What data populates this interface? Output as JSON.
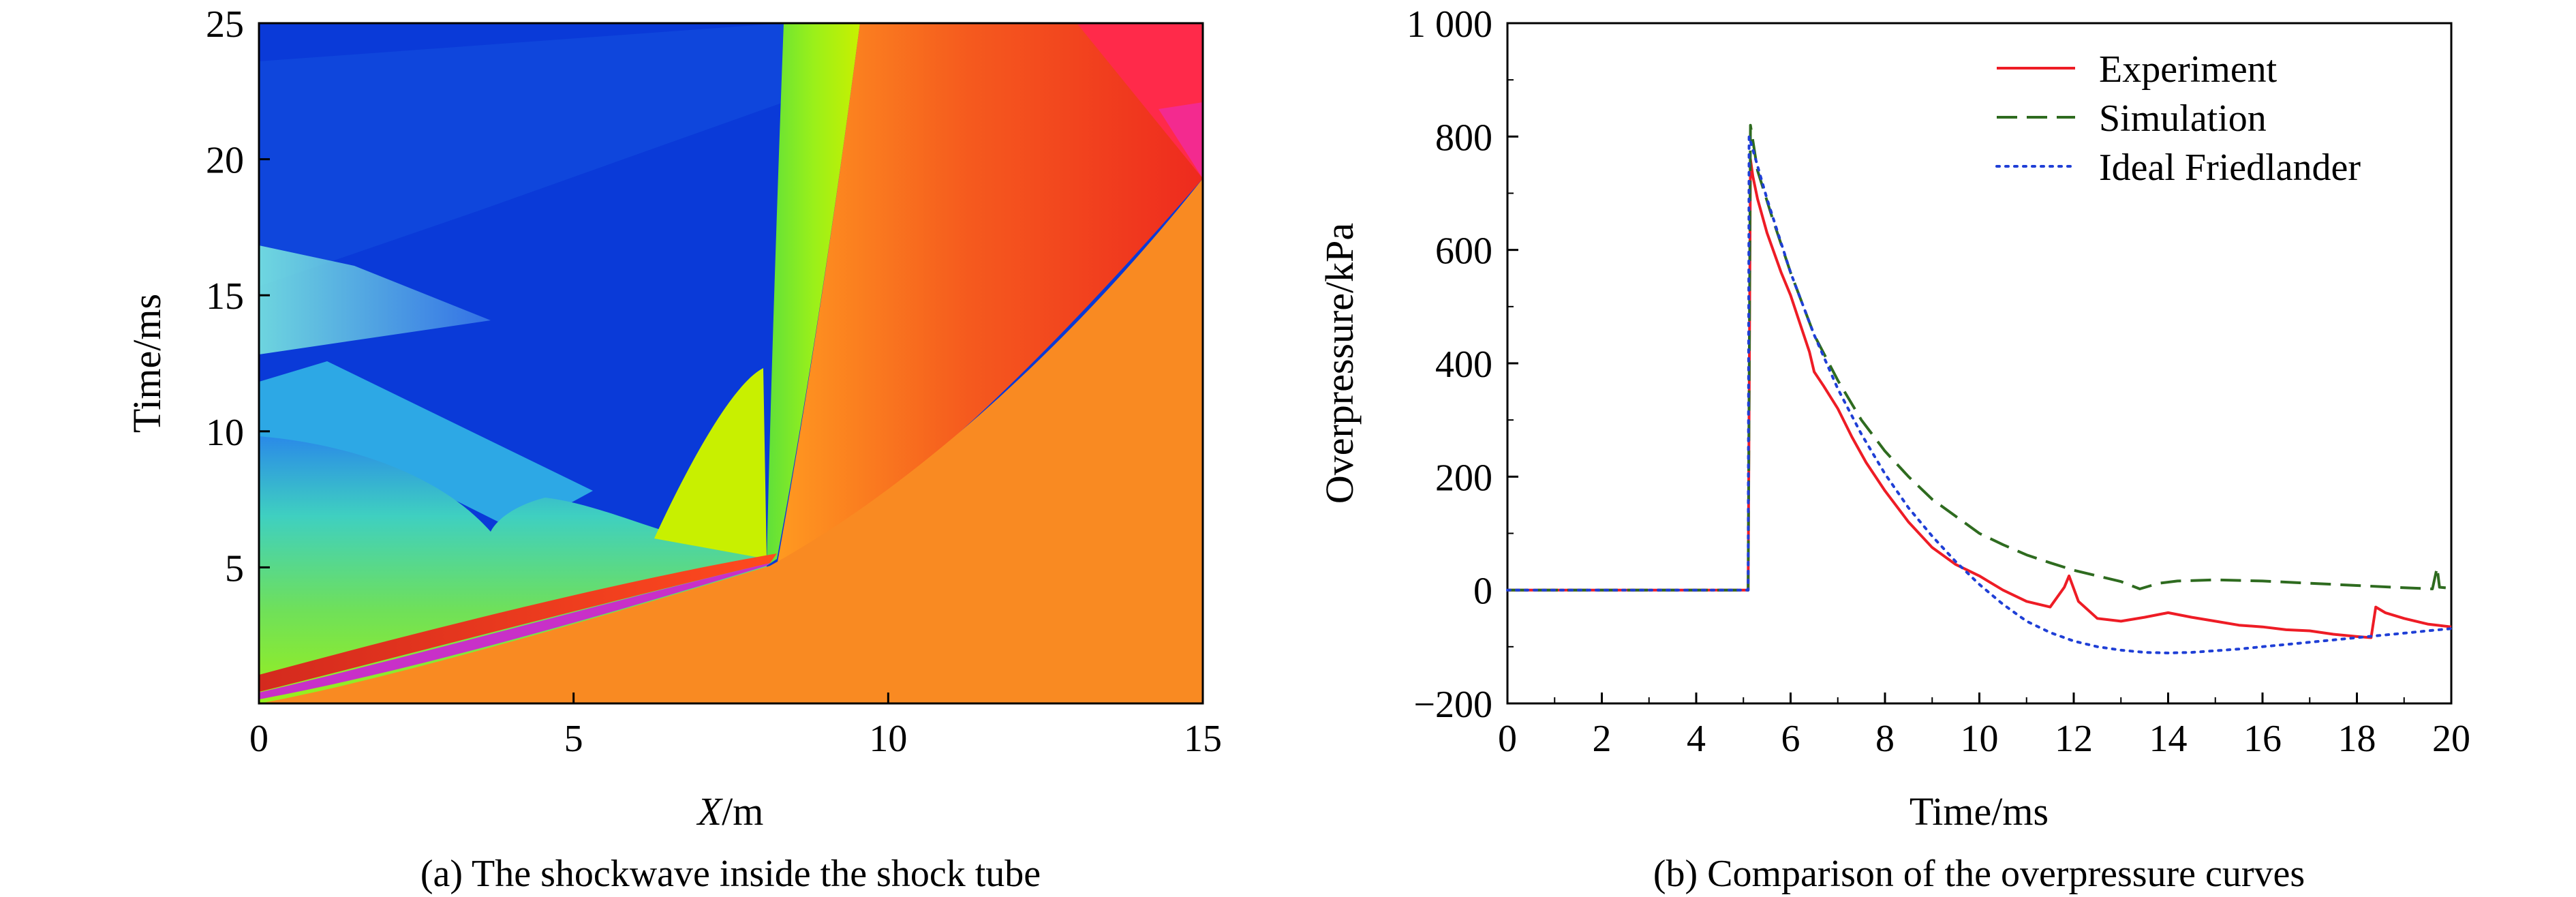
{
  "panel_a": {
    "caption": "(a) The shockwave inside the shock tube",
    "xlabel_italic": "X",
    "xlabel_unit": "/m"
  },
  "panel_b": {
    "caption": "(b) Comparison of the overpressure curves"
  },
  "colors": {
    "experiment": "#ee1c25",
    "simulation": "#2e6b1f",
    "friedlander": "#1f3fd6",
    "contour_low": "#0a3ad8",
    "contour_mid": "#7ee81a",
    "contour_high": "#ee2b1f",
    "contour_ambient": "#f98a22",
    "contour_peak": "#c830c8"
  },
  "chart_data": [
    {
      "type": "heatmap",
      "xlabel": "X/m",
      "ylabel": "Time/ms",
      "xlim": [
        0,
        15
      ],
      "ylim": [
        0,
        25
      ],
      "xticks": [
        0,
        5,
        10,
        15
      ],
      "yticks": [
        5,
        10,
        15,
        20,
        25
      ],
      "color_scale": "pressure (blue = low, green = medium, red/magenta = high, orange = ambient)",
      "features": {
        "incident_shock_front": [
          [
            0,
            0
          ],
          [
            2,
            1.3
          ],
          [
            4,
            2.8
          ],
          [
            6,
            4.2
          ],
          [
            8,
            5.4
          ],
          [
            10,
            7.2
          ],
          [
            12,
            10.2
          ],
          [
            15,
            19.3
          ]
        ],
        "contact_surface": [
          [
            8.1,
            5.8
          ],
          [
            8.2,
            12
          ],
          [
            8.25,
            20
          ],
          [
            8.3,
            25
          ]
        ],
        "rarefaction_fan_head": [
          [
            9.6,
            25
          ],
          [
            12.8,
            25
          ],
          [
            15,
            19.5
          ]
        ]
      }
    },
    {
      "type": "line",
      "xlabel": "Time/ms",
      "ylabel": "Overpressure/kPa",
      "xlim": [
        0,
        20
      ],
      "ylim": [
        -200,
        1000
      ],
      "xticks": [
        0,
        2,
        4,
        6,
        8,
        10,
        12,
        14,
        16,
        18,
        20
      ],
      "yticks": [
        -200,
        0,
        200,
        400,
        600,
        800,
        1000
      ],
      "ytick_labels": [
        "−200",
        "0",
        "200",
        "400",
        "600",
        "800",
        "1 000"
      ],
      "legend_position": "top-right",
      "series": [
        {
          "name": "Experiment",
          "style": "solid",
          "x": [
            0,
            5.1,
            5.15,
            5.2,
            5.3,
            5.5,
            5.8,
            6.0,
            6.2,
            6.4,
            6.5,
            6.7,
            7.0,
            7.3,
            7.6,
            8.0,
            8.5,
            9.0,
            9.5,
            10.0,
            10.5,
            11.0,
            11.5,
            11.8,
            11.9,
            12.1,
            12.5,
            13.0,
            13.5,
            14.0,
            14.5,
            15.0,
            15.5,
            16.0,
            16.5,
            17.0,
            17.5,
            18.0,
            18.3,
            18.4,
            18.6,
            19.0,
            19.5,
            20.0
          ],
          "y": [
            0,
            0,
            760,
            730,
            690,
            630,
            560,
            520,
            470,
            420,
            385,
            360,
            320,
            270,
            225,
            175,
            120,
            75,
            45,
            25,
            0,
            -20,
            -30,
            5,
            25,
            -20,
            -50,
            -55,
            -48,
            -40,
            -48,
            -55,
            -62,
            -65,
            -70,
            -72,
            -78,
            -82,
            -84,
            -30,
            -40,
            -50,
            -60,
            -65
          ]
        },
        {
          "name": "Simulation",
          "style": "dashed",
          "x": [
            0,
            5.1,
            5.15,
            5.3,
            5.6,
            6.0,
            6.5,
            7.0,
            7.5,
            8.0,
            8.5,
            9.0,
            9.5,
            10.0,
            10.5,
            11.0,
            11.5,
            12.0,
            12.5,
            13.0,
            13.4,
            13.8,
            14.2,
            15.0,
            16.0,
            17.0,
            18.0,
            19.0,
            19.6,
            19.7,
            19.75,
            20.0
          ],
          "y": [
            0,
            0,
            820,
            740,
            660,
            560,
            450,
            370,
            300,
            245,
            200,
            160,
            130,
            100,
            80,
            62,
            48,
            35,
            25,
            15,
            2,
            12,
            16,
            18,
            16,
            12,
            8,
            4,
            2,
            40,
            5,
            3
          ]
        },
        {
          "name": "Ideal Friedlander",
          "style": "dotted",
          "x": [
            0,
            5.1,
            5.12,
            5.5,
            6.0,
            6.5,
            7.0,
            7.5,
            8.0,
            8.5,
            9.0,
            9.5,
            10.0,
            10.5,
            11.0,
            11.5,
            12.0,
            12.5,
            13.0,
            13.5,
            14.0,
            14.5,
            15.0,
            15.5,
            16.0,
            16.5,
            17.0,
            17.5,
            18.0,
            18.5,
            19.0,
            19.5,
            20.0
          ],
          "y": [
            0,
            0,
            800,
            690,
            560,
            450,
            355,
            275,
            205,
            145,
            95,
            50,
            10,
            -25,
            -55,
            -75,
            -90,
            -100,
            -106,
            -110,
            -111,
            -110,
            -107,
            -104,
            -100,
            -96,
            -92,
            -88,
            -84,
            -80,
            -76,
            -72,
            -68
          ]
        }
      ]
    }
  ]
}
